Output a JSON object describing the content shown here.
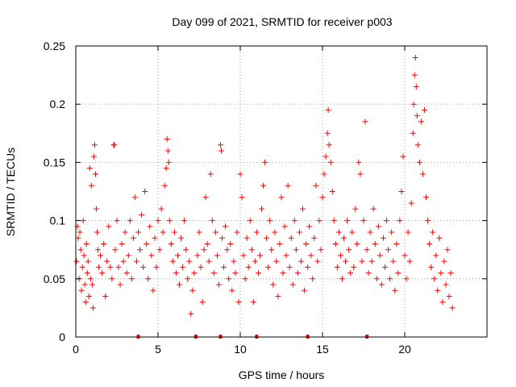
{
  "chart_data": {
    "type": "scatter",
    "title": "Day 099 of 2021, SRMTID for receiver p003",
    "xlabel": "GPS time / hours",
    "ylabel": "SRMTID / TECUs",
    "xlim": [
      0,
      25
    ],
    "ylim": [
      0,
      0.25
    ],
    "x_ticks": [
      0,
      5,
      10,
      15,
      20
    ],
    "x_tick_labels": [
      "0",
      "5",
      "10",
      "15",
      "20"
    ],
    "y_ticks": [
      0,
      0.05,
      0.1,
      0.15,
      0.2,
      0.25
    ],
    "y_tick_labels": [
      "0",
      "0.05",
      "0.1",
      "0.15",
      "0.2",
      "0.25"
    ],
    "grid": true,
    "marker": "+",
    "color": "#ff0000",
    "gap_markers_x": [
      3.8,
      7.3,
      8.8,
      11.0,
      14.1,
      17.7
    ],
    "series": [
      {
        "name": "SRMTID",
        "points": [
          [
            0.05,
            0.065
          ],
          [
            0.1,
            0.095
          ],
          [
            0.15,
            0.085
          ],
          [
            0.2,
            0.05
          ],
          [
            0.25,
            0.09
          ],
          [
            0.3,
            0.075
          ],
          [
            0.35,
            0.04
          ],
          [
            0.4,
            0.06
          ],
          [
            0.45,
            0.1
          ],
          [
            0.5,
            0.07
          ],
          [
            0.55,
            0.045
          ],
          [
            0.6,
            0.03
          ],
          [
            0.65,
            0.08
          ],
          [
            0.7,
            0.055
          ],
          [
            0.75,
            0.065
          ],
          [
            0.8,
            0.035
          ],
          [
            0.85,
            0.145
          ],
          [
            0.9,
            0.05
          ],
          [
            0.95,
            0.13
          ],
          [
            1.0,
            0.045
          ],
          [
            1.05,
            0.025
          ],
          [
            1.1,
            0.155
          ],
          [
            1.15,
            0.165
          ],
          [
            1.2,
            0.14
          ],
          [
            1.25,
            0.11
          ],
          [
            1.3,
            0.09
          ],
          [
            1.35,
            0.075
          ],
          [
            1.4,
            0.06
          ],
          [
            1.5,
            0.07
          ],
          [
            1.6,
            0.055
          ],
          [
            1.7,
            0.08
          ],
          [
            1.8,
            0.035
          ],
          [
            1.9,
            0.065
          ],
          [
            2.0,
            0.095
          ],
          [
            2.1,
            0.06
          ],
          [
            2.2,
            0.05
          ],
          [
            2.3,
            0.165
          ],
          [
            2.35,
            0.165
          ],
          [
            2.4,
            0.075
          ],
          [
            2.5,
            0.1
          ],
          [
            2.6,
            0.06
          ],
          [
            2.7,
            0.045
          ],
          [
            2.8,
            0.08
          ],
          [
            2.9,
            0.065
          ],
          [
            3.0,
            0.09
          ],
          [
            3.1,
            0.055
          ],
          [
            3.2,
            0.07
          ],
          [
            3.3,
            0.1
          ],
          [
            3.4,
            0.05
          ],
          [
            3.5,
            0.085
          ],
          [
            3.6,
            0.12
          ],
          [
            3.7,
            0.065
          ],
          [
            3.8,
            0.09
          ],
          [
            3.9,
            0.075
          ],
          [
            4.0,
            0.105
          ],
          [
            4.1,
            0.06
          ],
          [
            4.2,
            0.125
          ],
          [
            4.3,
            0.08
          ],
          [
            4.4,
            0.05
          ],
          [
            4.5,
            0.095
          ],
          [
            4.6,
            0.07
          ],
          [
            4.7,
            0.04
          ],
          [
            4.8,
            0.085
          ],
          [
            4.9,
            0.06
          ],
          [
            5.0,
            0.1
          ],
          [
            5.1,
            0.075
          ],
          [
            5.2,
            0.11
          ],
          [
            5.3,
            0.09
          ],
          [
            5.4,
            0.13
          ],
          [
            5.5,
            0.145
          ],
          [
            5.55,
            0.17
          ],
          [
            5.6,
            0.16
          ],
          [
            5.65,
            0.15
          ],
          [
            5.7,
            0.1
          ],
          [
            5.8,
            0.08
          ],
          [
            5.9,
            0.065
          ],
          [
            6.0,
            0.09
          ],
          [
            6.1,
            0.055
          ],
          [
            6.2,
            0.07
          ],
          [
            6.3,
            0.045
          ],
          [
            6.4,
            0.085
          ],
          [
            6.5,
            0.06
          ],
          [
            6.6,
            0.1
          ],
          [
            6.7,
            0.075
          ],
          [
            6.8,
            0.05
          ],
          [
            6.9,
            0.065
          ],
          [
            7.0,
            0.02
          ],
          [
            7.1,
            0.04
          ],
          [
            7.2,
            0.055
          ],
          [
            7.4,
            0.07
          ],
          [
            7.5,
            0.09
          ],
          [
            7.6,
            0.06
          ],
          [
            7.7,
            0.03
          ],
          [
            7.8,
            0.075
          ],
          [
            7.9,
            0.12
          ],
          [
            8.0,
            0.08
          ],
          [
            8.1,
            0.065
          ],
          [
            8.2,
            0.14
          ],
          [
            8.3,
            0.1
          ],
          [
            8.4,
            0.055
          ],
          [
            8.5,
            0.09
          ],
          [
            8.6,
            0.07
          ],
          [
            8.7,
            0.045
          ],
          [
            8.8,
            0.165
          ],
          [
            8.85,
            0.16
          ],
          [
            8.9,
            0.085
          ],
          [
            9.0,
            0.06
          ],
          [
            9.1,
            0.095
          ],
          [
            9.2,
            0.075
          ],
          [
            9.3,
            0.05
          ],
          [
            9.4,
            0.08
          ],
          [
            9.5,
            0.04
          ],
          [
            9.6,
            0.065
          ],
          [
            9.7,
            0.055
          ],
          [
            9.8,
            0.09
          ],
          [
            9.9,
            0.03
          ],
          [
            10.0,
            0.14
          ],
          [
            10.1,
            0.12
          ],
          [
            10.2,
            0.07
          ],
          [
            10.3,
            0.05
          ],
          [
            10.4,
            0.085
          ],
          [
            10.5,
            0.06
          ],
          [
            10.6,
            0.1
          ],
          [
            10.7,
            0.075
          ],
          [
            10.8,
            0.03
          ],
          [
            10.9,
            0.065
          ],
          [
            11.0,
            0.09
          ],
          [
            11.1,
            0.055
          ],
          [
            11.2,
            0.07
          ],
          [
            11.3,
            0.11
          ],
          [
            11.4,
            0.13
          ],
          [
            11.5,
            0.15
          ],
          [
            11.6,
            0.085
          ],
          [
            11.7,
            0.06
          ],
          [
            11.8,
            0.1
          ],
          [
            11.9,
            0.075
          ],
          [
            12.0,
            0.045
          ],
          [
            12.1,
            0.09
          ],
          [
            12.2,
            0.065
          ],
          [
            12.3,
            0.035
          ],
          [
            12.4,
            0.08
          ],
          [
            12.5,
            0.12
          ],
          [
            12.6,
            0.055
          ],
          [
            12.7,
            0.095
          ],
          [
            12.8,
            0.07
          ],
          [
            12.9,
            0.13
          ],
          [
            13.0,
            0.06
          ],
          [
            13.1,
            0.085
          ],
          [
            13.2,
            0.045
          ],
          [
            13.3,
            0.1
          ],
          [
            13.4,
            0.075
          ],
          [
            13.5,
            0.055
          ],
          [
            13.6,
            0.09
          ],
          [
            13.7,
            0.065
          ],
          [
            13.8,
            0.11
          ],
          [
            13.9,
            0.04
          ],
          [
            14.0,
            0.08
          ],
          [
            14.1,
            0.06
          ],
          [
            14.2,
            0.095
          ],
          [
            14.3,
            0.07
          ],
          [
            14.4,
            0.05
          ],
          [
            14.5,
            0.085
          ],
          [
            14.6,
            0.13
          ],
          [
            14.7,
            0.065
          ],
          [
            14.8,
            0.1
          ],
          [
            14.9,
            0.075
          ],
          [
            15.0,
            0.12
          ],
          [
            15.1,
            0.14
          ],
          [
            15.2,
            0.155
          ],
          [
            15.3,
            0.175
          ],
          [
            15.35,
            0.195
          ],
          [
            15.4,
            0.165
          ],
          [
            15.5,
            0.15
          ],
          [
            15.6,
            0.125
          ],
          [
            15.7,
            0.1
          ],
          [
            15.8,
            0.08
          ],
          [
            15.9,
            0.06
          ],
          [
            16.0,
            0.09
          ],
          [
            16.1,
            0.07
          ],
          [
            16.2,
            0.05
          ],
          [
            16.3,
            0.085
          ],
          [
            16.4,
            0.065
          ],
          [
            16.5,
            0.1
          ],
          [
            16.6,
            0.075
          ],
          [
            16.7,
            0.055
          ],
          [
            16.8,
            0.09
          ],
          [
            16.9,
            0.06
          ],
          [
            17.0,
            0.11
          ],
          [
            17.1,
            0.08
          ],
          [
            17.2,
            0.15
          ],
          [
            17.3,
            0.14
          ],
          [
            17.4,
            0.065
          ],
          [
            17.5,
            0.1
          ],
          [
            17.6,
            0.185
          ],
          [
            17.7,
            0.075
          ],
          [
            17.8,
            0.055
          ],
          [
            17.9,
            0.09
          ],
          [
            18.0,
            0.065
          ],
          [
            18.1,
            0.11
          ],
          [
            18.2,
            0.08
          ],
          [
            18.3,
            0.05
          ],
          [
            18.4,
            0.095
          ],
          [
            18.5,
            0.07
          ],
          [
            18.6,
            0.045
          ],
          [
            18.7,
            0.085
          ],
          [
            18.8,
            0.06
          ],
          [
            18.9,
            0.1
          ],
          [
            19.0,
            0.075
          ],
          [
            19.1,
            0.05
          ],
          [
            19.2,
            0.09
          ],
          [
            19.3,
            0.065
          ],
          [
            19.4,
            0.04
          ],
          [
            19.5,
            0.08
          ],
          [
            19.6,
            0.055
          ],
          [
            19.7,
            0.1
          ],
          [
            19.8,
            0.125
          ],
          [
            19.9,
            0.155
          ],
          [
            20.0,
            0.07
          ],
          [
            20.1,
            0.05
          ],
          [
            20.2,
            0.09
          ],
          [
            20.3,
            0.065
          ],
          [
            20.4,
            0.115
          ],
          [
            20.5,
            0.175
          ],
          [
            20.55,
            0.2
          ],
          [
            20.6,
            0.225
          ],
          [
            20.65,
            0.24
          ],
          [
            20.7,
            0.215
          ],
          [
            20.75,
            0.19
          ],
          [
            20.8,
            0.165
          ],
          [
            20.9,
            0.15
          ],
          [
            21.0,
            0.185
          ],
          [
            21.1,
            0.14
          ],
          [
            21.2,
            0.195
          ],
          [
            21.3,
            0.12
          ],
          [
            21.4,
            0.1
          ],
          [
            21.5,
            0.08
          ],
          [
            21.6,
            0.06
          ],
          [
            21.7,
            0.09
          ],
          [
            21.8,
            0.05
          ],
          [
            21.9,
            0.07
          ],
          [
            22.0,
            0.04
          ],
          [
            22.1,
            0.085
          ],
          [
            22.2,
            0.055
          ],
          [
            22.3,
            0.03
          ],
          [
            22.4,
            0.065
          ],
          [
            22.5,
            0.045
          ],
          [
            22.6,
            0.075
          ],
          [
            22.7,
            0.035
          ],
          [
            22.8,
            0.055
          ],
          [
            22.9,
            0.025
          ]
        ]
      }
    ]
  }
}
